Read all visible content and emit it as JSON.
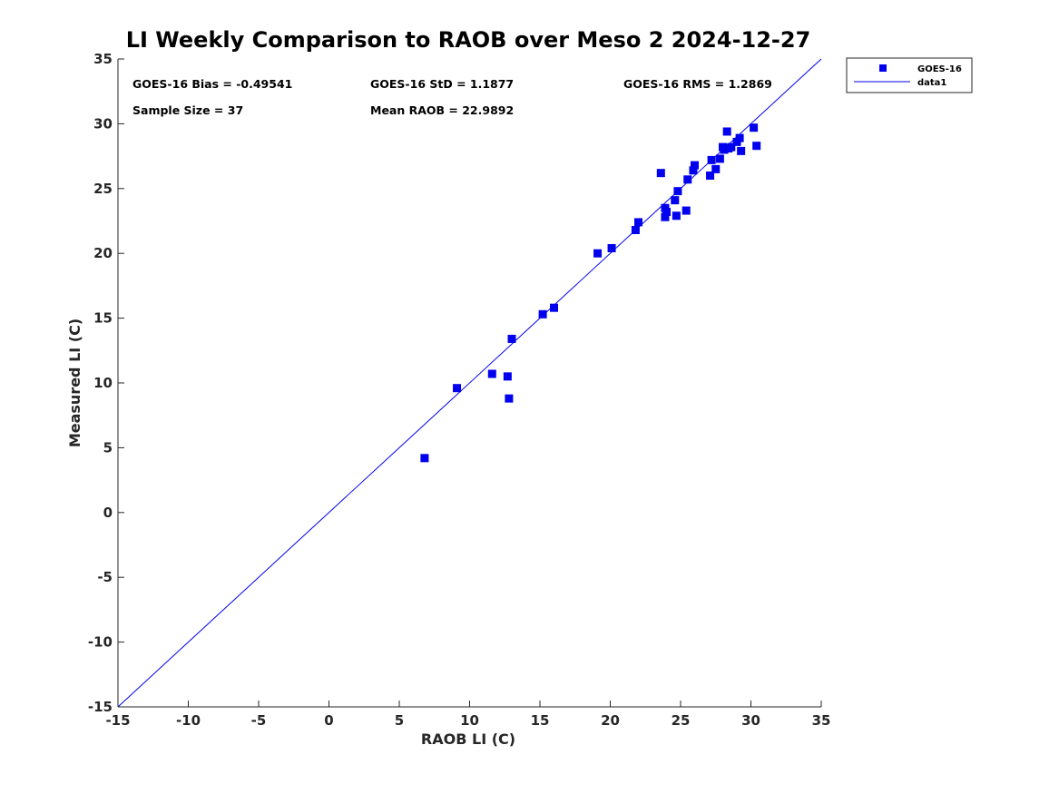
{
  "chart_data": {
    "type": "scatter",
    "title": "LI Weekly Comparison to RAOB over Meso 2 2024-12-27",
    "xlabel": "RAOB LI (C)",
    "ylabel": "Measured LI (C)",
    "xlim": [
      -15,
      35
    ],
    "ylim": [
      -15,
      35
    ],
    "xticks": [
      "-15",
      "-10",
      "-5",
      "0",
      "5",
      "10",
      "15",
      "20",
      "25",
      "30",
      "35"
    ],
    "yticks": [
      "-15",
      "-10",
      "-5",
      "0",
      "5",
      "10",
      "15",
      "20",
      "25",
      "30",
      "35"
    ],
    "grid": false,
    "legend_position": "top-right",
    "colors": {
      "series": "#0000ee",
      "line": "#0000ee",
      "axis": "#262626"
    },
    "series": [
      {
        "name": "GOES-16",
        "marker": "square",
        "points": [
          [
            6.8,
            4.2
          ],
          [
            9.1,
            9.6
          ],
          [
            11.6,
            10.7
          ],
          [
            12.7,
            10.5
          ],
          [
            12.8,
            8.8
          ],
          [
            13.0,
            13.4
          ],
          [
            15.2,
            15.3
          ],
          [
            16.0,
            15.8
          ],
          [
            19.1,
            20.0
          ],
          [
            20.1,
            20.4
          ],
          [
            21.8,
            21.8
          ],
          [
            22.0,
            22.4
          ],
          [
            23.6,
            26.2
          ],
          [
            23.9,
            22.8
          ],
          [
            23.9,
            23.5
          ],
          [
            24.0,
            23.2
          ],
          [
            24.6,
            24.1
          ],
          [
            24.7,
            22.9
          ],
          [
            24.8,
            24.8
          ],
          [
            25.4,
            23.3
          ],
          [
            25.5,
            25.7
          ],
          [
            25.9,
            26.4
          ],
          [
            26.0,
            26.8
          ],
          [
            27.1,
            26.0
          ],
          [
            27.2,
            27.2
          ],
          [
            27.5,
            26.5
          ],
          [
            27.8,
            27.3
          ],
          [
            28.0,
            28.2
          ],
          [
            28.1,
            28.0
          ],
          [
            28.3,
            29.4
          ],
          [
            28.6,
            28.2
          ],
          [
            29.0,
            28.6
          ],
          [
            29.2,
            28.9
          ],
          [
            29.3,
            27.9
          ],
          [
            30.2,
            29.7
          ],
          [
            30.4,
            28.3
          ],
          [
            28.4,
            28.1
          ]
        ]
      },
      {
        "name": "data1",
        "line": [
          [
            -15,
            -15
          ],
          [
            35,
            35
          ]
        ]
      }
    ],
    "annotations": {
      "bias": "GOES-16 Bias = -0.49541",
      "std": "GOES-16 StD = 1.1877",
      "rms": "GOES-16 RMS = 1.2869",
      "sample_size": "Sample Size = 37",
      "mean_raob": "Mean RAOB = 22.9892"
    }
  }
}
